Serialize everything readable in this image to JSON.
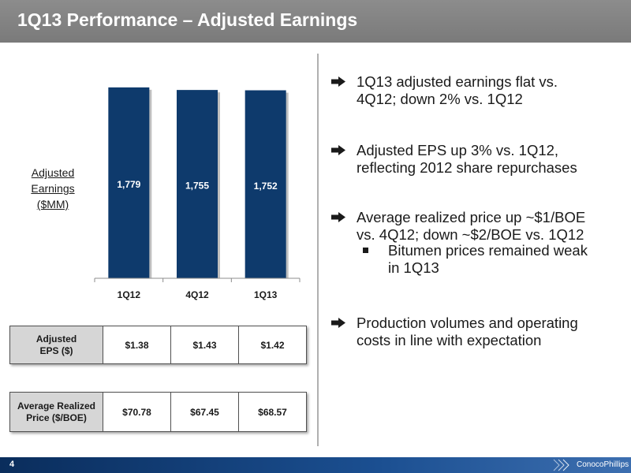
{
  "header": {
    "title": "1Q13 Performance – Adjusted Earnings"
  },
  "chart_data": {
    "type": "bar",
    "categories": [
      "1Q12",
      "4Q12",
      "1Q13"
    ],
    "values": [
      1779,
      1755,
      1752
    ],
    "data_labels": [
      "1,779",
      "1,755",
      "1,752"
    ],
    "ylabel": "Adjusted Earnings ($MM)",
    "ylim": [
      0,
      1800
    ],
    "bar_color": "#0e3a6c",
    "grid": false
  },
  "chart": {
    "ylabel_lines": [
      "Adjusted",
      "Earnings",
      "($MM)"
    ]
  },
  "tables": {
    "eps": {
      "label_lines": [
        "Adjusted",
        "EPS ($)"
      ],
      "values": [
        "$1.38",
        "$1.43",
        "$1.42"
      ]
    },
    "price": {
      "label_lines": [
        "Average Realized",
        "Price ($/BOE)"
      ],
      "values": [
        "$70.78",
        "$67.45",
        "$68.57"
      ]
    }
  },
  "bullets": [
    {
      "lines": [
        "1Q13 adjusted earnings flat vs.",
        "4Q12; down 2% vs. 1Q12"
      ]
    },
    {
      "lines": [
        "Adjusted EPS up 3% vs. 1Q12,",
        "reflecting 2012 share repurchases"
      ]
    },
    {
      "lines": [
        "Average realized price up ~$1/BOE",
        "vs. 4Q12; down ~$2/BOE vs. 1Q12"
      ],
      "sub": {
        "lines": [
          "Bitumen prices remained weak",
          "in 1Q13"
        ]
      }
    },
    {
      "lines": [
        "Production volumes and operating",
        "costs in line with expectation"
      ]
    }
  ],
  "footer": {
    "page_number": "4",
    "logo_text": "ConocoPhillips"
  }
}
